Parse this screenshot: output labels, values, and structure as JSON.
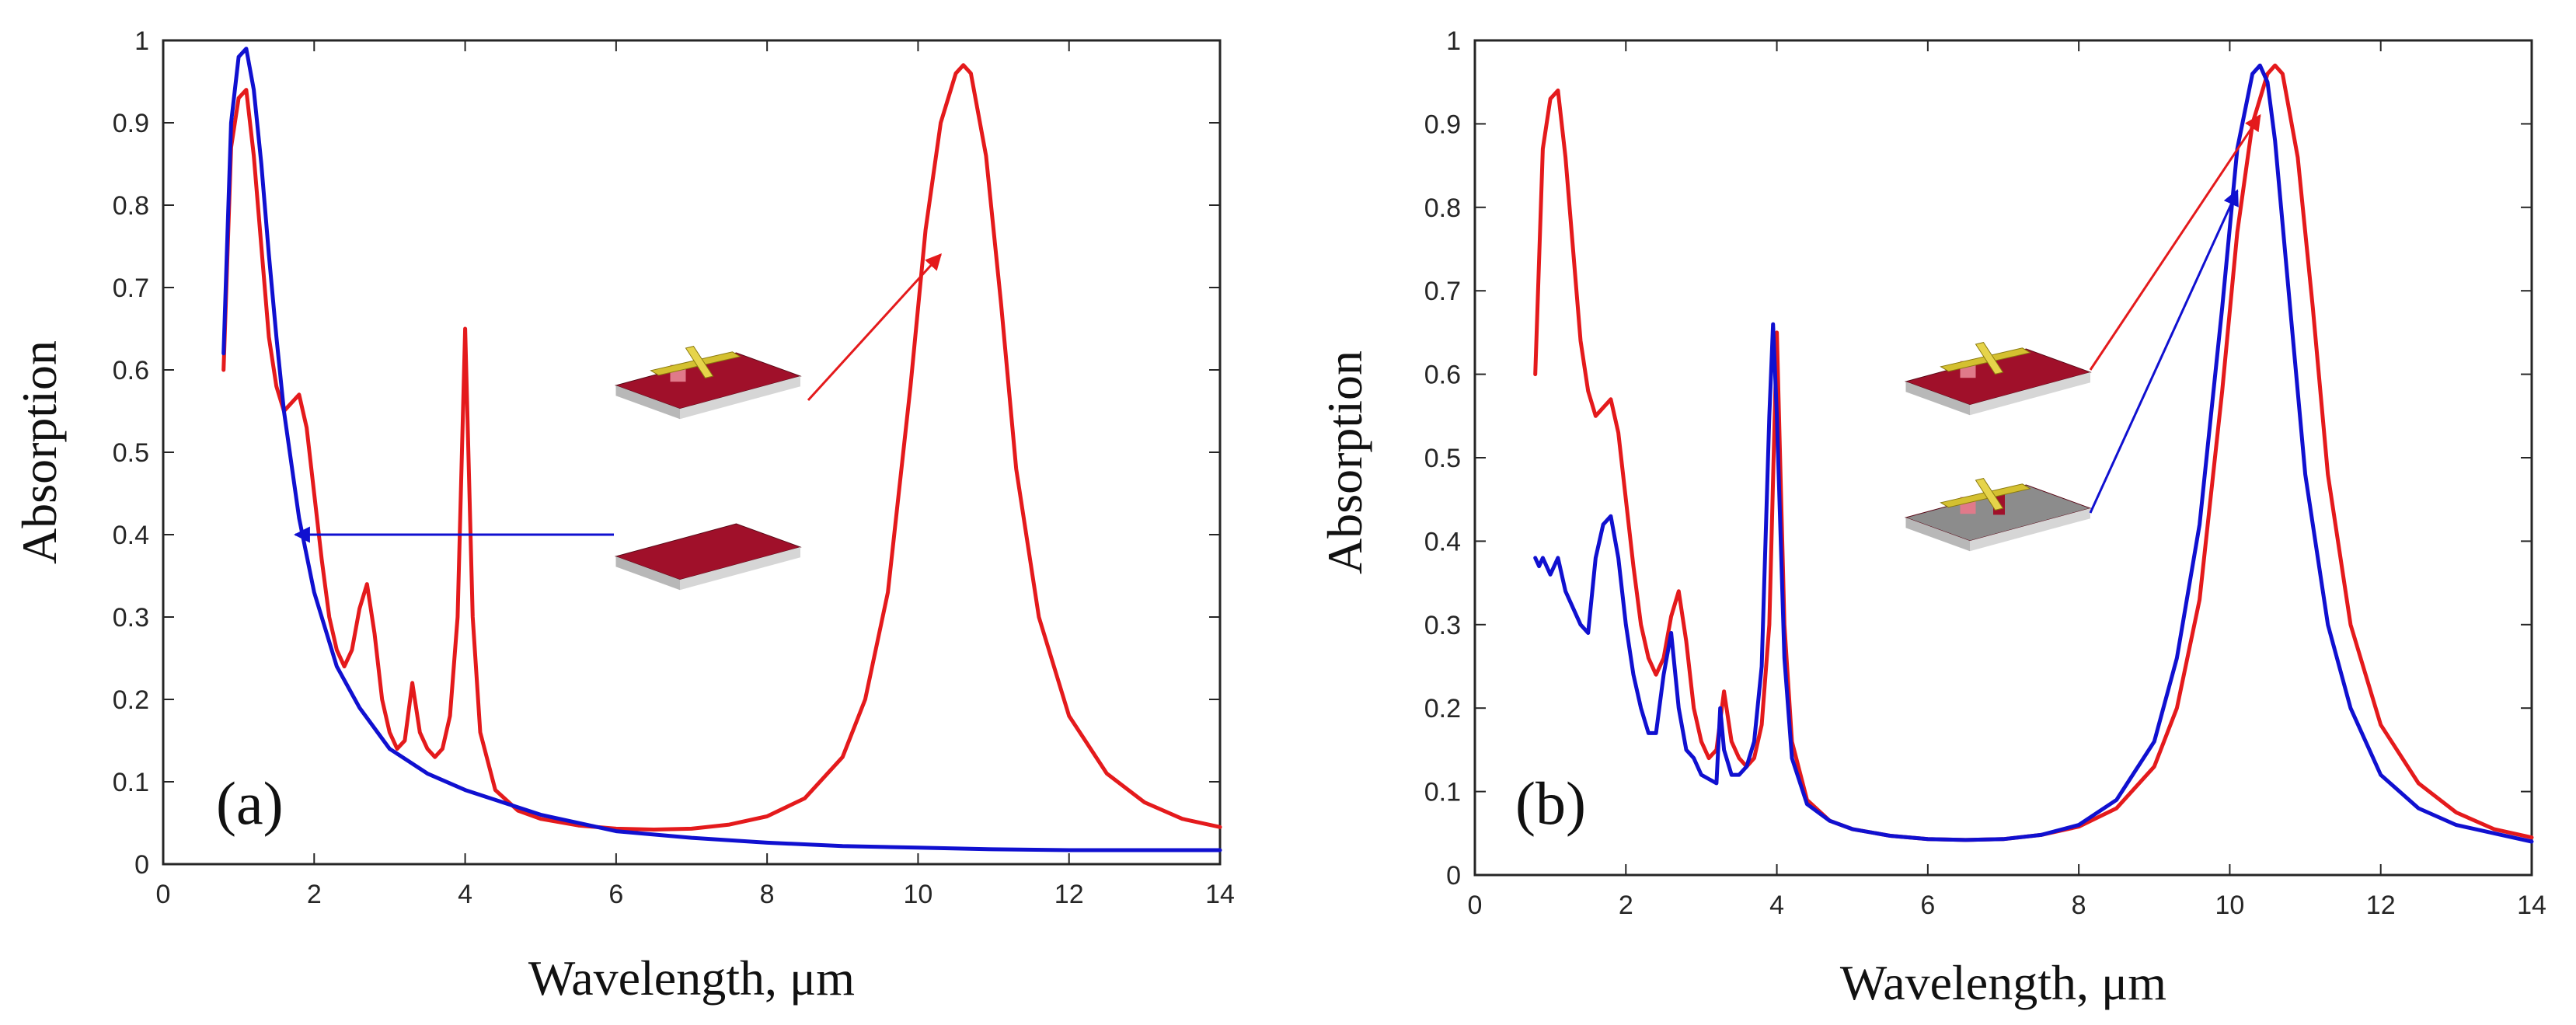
{
  "colors": {
    "red": "#e41a1c",
    "blue": "#1010d0",
    "axis": "#262626",
    "substrate_red": "#a0102a",
    "substrate_gray": "#8c8c8c",
    "gold": "#d4c030",
    "pink": "#e07a8a"
  },
  "chart_data": [
    {
      "type": "line",
      "panel_label": "(a)",
      "xlabel": "Wavelength, μm",
      "ylabel": "Absorption",
      "xlim": [
        0,
        14
      ],
      "ylim": [
        0,
        1
      ],
      "xticks": [
        "0",
        "2",
        "4",
        "6",
        "8",
        "10",
        "12",
        "14"
      ],
      "yticks": [
        "0",
        "0.1",
        "0.2",
        "0.3",
        "0.4",
        "0.5",
        "0.6",
        "0.7",
        "0.8",
        "0.9",
        "1"
      ],
      "grid": false,
      "insets": [
        {
          "name": "metasurface-structure-on-substrate",
          "kind": "cross-red",
          "points_to": [
            10.3,
            0.74
          ],
          "color": "red"
        },
        {
          "name": "bare-substrate",
          "kind": "bare-red",
          "points_to": [
            1.75,
            0.4
          ],
          "color": "blue"
        }
      ],
      "series": [
        {
          "name": "red",
          "color": "red",
          "x": [
            0.8,
            0.9,
            1.0,
            1.1,
            1.2,
            1.3,
            1.4,
            1.5,
            1.6,
            1.7,
            1.8,
            1.9,
            2.0,
            2.1,
            2.2,
            2.3,
            2.4,
            2.5,
            2.6,
            2.7,
            2.8,
            2.9,
            3.0,
            3.1,
            3.2,
            3.3,
            3.4,
            3.5,
            3.6,
            3.7,
            3.8,
            3.9,
            4.0,
            4.1,
            4.2,
            4.4,
            4.7,
            5.0,
            5.5,
            6.0,
            6.5,
            7.0,
            7.5,
            8.0,
            8.5,
            9.0,
            9.3,
            9.6,
            9.9,
            10.1,
            10.3,
            10.5,
            10.6,
            10.7,
            10.9,
            11.1,
            11.3,
            11.6,
            12.0,
            12.5,
            13.0,
            13.5,
            14.0
          ],
          "values": [
            0.6,
            0.87,
            0.93,
            0.94,
            0.86,
            0.75,
            0.64,
            0.58,
            0.55,
            0.56,
            0.57,
            0.53,
            0.45,
            0.37,
            0.3,
            0.26,
            0.24,
            0.26,
            0.31,
            0.34,
            0.28,
            0.2,
            0.16,
            0.14,
            0.15,
            0.22,
            0.16,
            0.14,
            0.13,
            0.14,
            0.18,
            0.3,
            0.65,
            0.3,
            0.16,
            0.09,
            0.065,
            0.055,
            0.047,
            0.043,
            0.042,
            0.043,
            0.048,
            0.058,
            0.08,
            0.13,
            0.2,
            0.33,
            0.58,
            0.77,
            0.9,
            0.96,
            0.97,
            0.96,
            0.86,
            0.68,
            0.48,
            0.3,
            0.18,
            0.11,
            0.075,
            0.055,
            0.045
          ]
        },
        {
          "name": "blue",
          "color": "blue",
          "x": [
            0.8,
            0.9,
            1.0,
            1.1,
            1.2,
            1.3,
            1.4,
            1.5,
            1.6,
            1.8,
            2.0,
            2.3,
            2.6,
            3.0,
            3.5,
            4.0,
            4.5,
            5.0,
            6.0,
            7.0,
            8.0,
            9.0,
            10.0,
            11.0,
            12.0,
            13.0,
            14.0
          ],
          "values": [
            0.62,
            0.9,
            0.98,
            0.99,
            0.94,
            0.85,
            0.74,
            0.64,
            0.55,
            0.42,
            0.33,
            0.24,
            0.19,
            0.14,
            0.11,
            0.09,
            0.075,
            0.06,
            0.04,
            0.032,
            0.026,
            0.022,
            0.02,
            0.018,
            0.017,
            0.017,
            0.017
          ]
        }
      ]
    },
    {
      "type": "line",
      "panel_label": "(b)",
      "xlabel": "Wavelength, μm",
      "ylabel": "Absorption",
      "xlim": [
        0,
        14
      ],
      "ylim": [
        0,
        1
      ],
      "xticks": [
        "0",
        "2",
        "4",
        "6",
        "8",
        "10",
        "12",
        "14"
      ],
      "yticks": [
        "0",
        "0.1",
        "0.2",
        "0.3",
        "0.4",
        "0.5",
        "0.6",
        "0.7",
        "0.8",
        "0.9",
        "1"
      ],
      "grid": false,
      "insets": [
        {
          "name": "cross-structure-on-red-substrate",
          "kind": "cross-red",
          "points_to": [
            10.4,
            0.91
          ],
          "color": "red"
        },
        {
          "name": "cross-structure-on-gray-substrate",
          "kind": "cross-gray",
          "points_to": [
            10.1,
            0.82
          ],
          "color": "blue"
        }
      ],
      "series": [
        {
          "name": "red",
          "color": "red",
          "x": [
            0.8,
            0.9,
            1.0,
            1.1,
            1.2,
            1.3,
            1.4,
            1.5,
            1.6,
            1.7,
            1.8,
            1.9,
            2.0,
            2.1,
            2.2,
            2.3,
            2.4,
            2.5,
            2.6,
            2.7,
            2.8,
            2.9,
            3.0,
            3.1,
            3.2,
            3.3,
            3.4,
            3.5,
            3.6,
            3.7,
            3.8,
            3.9,
            4.0,
            4.1,
            4.2,
            4.4,
            4.7,
            5.0,
            5.5,
            6.0,
            6.5,
            7.0,
            7.5,
            8.0,
            8.5,
            9.0,
            9.3,
            9.6,
            9.9,
            10.1,
            10.3,
            10.5,
            10.6,
            10.7,
            10.9,
            11.1,
            11.3,
            11.6,
            12.0,
            12.5,
            13.0,
            13.5,
            14.0
          ],
          "values": [
            0.6,
            0.87,
            0.93,
            0.94,
            0.86,
            0.75,
            0.64,
            0.58,
            0.55,
            0.56,
            0.57,
            0.53,
            0.45,
            0.37,
            0.3,
            0.26,
            0.24,
            0.26,
            0.31,
            0.34,
            0.28,
            0.2,
            0.16,
            0.14,
            0.15,
            0.22,
            0.16,
            0.14,
            0.13,
            0.14,
            0.18,
            0.3,
            0.65,
            0.3,
            0.16,
            0.09,
            0.065,
            0.055,
            0.047,
            0.043,
            0.042,
            0.043,
            0.048,
            0.058,
            0.08,
            0.13,
            0.2,
            0.33,
            0.58,
            0.77,
            0.9,
            0.96,
            0.97,
            0.96,
            0.86,
            0.68,
            0.48,
            0.3,
            0.18,
            0.11,
            0.075,
            0.055,
            0.045
          ]
        },
        {
          "name": "blue",
          "color": "blue",
          "x": [
            0.8,
            0.85,
            0.9,
            1.0,
            1.1,
            1.2,
            1.3,
            1.4,
            1.5,
            1.6,
            1.7,
            1.8,
            1.9,
            2.0,
            2.1,
            2.2,
            2.3,
            2.4,
            2.5,
            2.6,
            2.7,
            2.8,
            2.9,
            3.0,
            3.1,
            3.2,
            3.25,
            3.3,
            3.4,
            3.5,
            3.6,
            3.7,
            3.8,
            3.9,
            3.95,
            4.0,
            4.1,
            4.2,
            4.4,
            4.7,
            5.0,
            5.5,
            6.0,
            6.5,
            7.0,
            7.5,
            8.0,
            8.5,
            9.0,
            9.3,
            9.6,
            9.9,
            10.1,
            10.3,
            10.4,
            10.5,
            10.6,
            10.8,
            11.0,
            11.3,
            11.6,
            12.0,
            12.5,
            13.0,
            13.5,
            14.0
          ],
          "values": [
            0.38,
            0.37,
            0.38,
            0.36,
            0.38,
            0.34,
            0.32,
            0.3,
            0.29,
            0.38,
            0.42,
            0.43,
            0.38,
            0.3,
            0.24,
            0.2,
            0.17,
            0.17,
            0.24,
            0.29,
            0.2,
            0.15,
            0.14,
            0.12,
            0.115,
            0.11,
            0.2,
            0.15,
            0.12,
            0.12,
            0.13,
            0.16,
            0.25,
            0.55,
            0.66,
            0.55,
            0.26,
            0.14,
            0.085,
            0.065,
            0.055,
            0.047,
            0.043,
            0.042,
            0.043,
            0.048,
            0.06,
            0.09,
            0.16,
            0.26,
            0.42,
            0.68,
            0.87,
            0.96,
            0.97,
            0.95,
            0.88,
            0.68,
            0.48,
            0.3,
            0.2,
            0.12,
            0.08,
            0.06,
            0.05,
            0.04
          ]
        }
      ]
    }
  ]
}
